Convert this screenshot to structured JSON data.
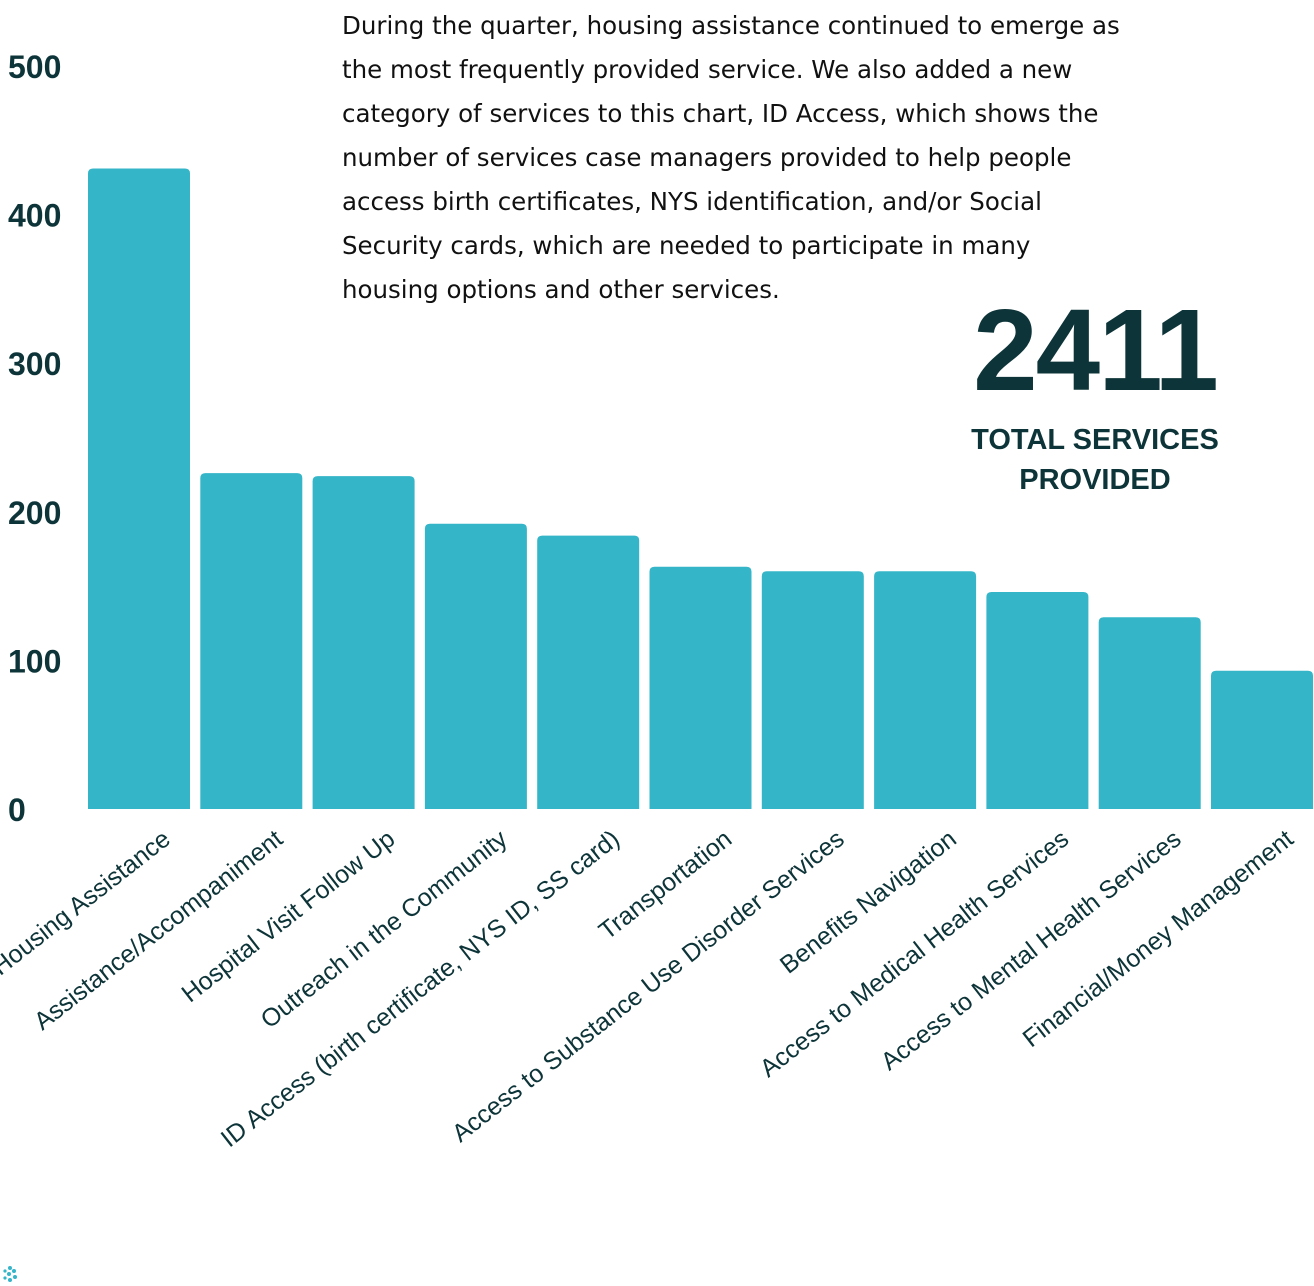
{
  "description_lines": [
    "During the quarter, housing assistance continued to emerge as",
    "the most frequently provided service. We also added a new",
    "category of services to this chart, ID Access, which shows the",
    "number of services case managers provided to help people",
    "access birth certificates, NYS identification, and/or Social",
    "Security cards, which are needed to participate in many",
    "housing options and other services."
  ],
  "total": {
    "value": "2411",
    "label": "TOTAL SERVICES PROVIDED"
  },
  "colors": {
    "bar": "#35b5c8",
    "text": "#0d3438",
    "logo": "#35b5c8"
  },
  "chart_data": {
    "type": "bar",
    "categories": [
      "Housing Assistance",
      "Assistance/Accompaniment",
      "Hospital Visit Follow Up",
      "Outreach in the Community",
      "ID Access (birth certificate, NYS ID, SS card)",
      "Transportation",
      "Access to Substance Use Disorder Services",
      "Benefits Navigation",
      "Access to Medical Health Services",
      "Access to Mental Health Services",
      "Financial/Money Management"
    ],
    "values": [
      431,
      226,
      224,
      192,
      184,
      163,
      160,
      160,
      146,
      129,
      93
    ],
    "ylim": [
      0,
      500
    ],
    "yticks": [
      0,
      100,
      200,
      300,
      400,
      500
    ],
    "title": "",
    "xlabel": "",
    "ylabel": "",
    "grid": false
  }
}
